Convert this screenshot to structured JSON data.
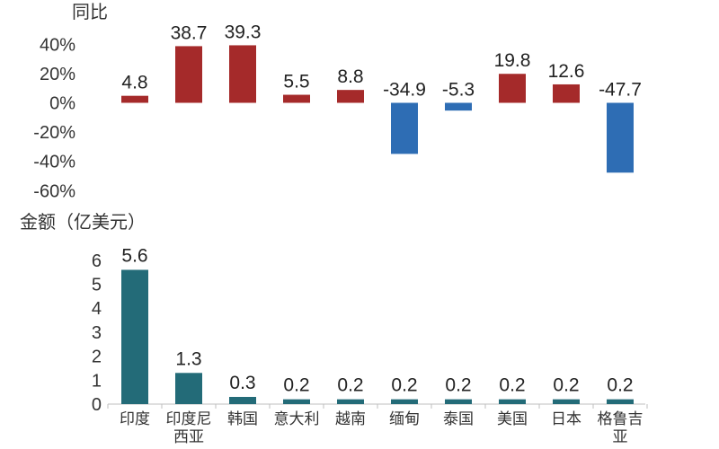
{
  "chart_data": [
    {
      "type": "bar",
      "ylabel": "同比",
      "categories": [
        "印度",
        "印度尼西亚",
        "韩国",
        "意大利",
        "越南",
        "缅甸",
        "泰国",
        "美国",
        "日本",
        "格鲁吉亚"
      ],
      "values": [
        4.8,
        38.7,
        39.3,
        5.5,
        8.8,
        -34.9,
        -5.3,
        19.8,
        12.6,
        -47.7
      ],
      "value_labels": [
        "4.8",
        "38.7",
        "39.3",
        "5.5",
        "8.8",
        "-34.9",
        "-5.3",
        "19.8",
        "12.6",
        "-47.7"
      ],
      "yticks": [
        40,
        20,
        0,
        -20,
        -40,
        -60
      ],
      "ytick_labels": [
        "40%",
        "20%",
        "0%",
        "-20%",
        "-40%",
        "-60%"
      ],
      "ylim": [
        -60,
        40
      ],
      "colors": {
        "positive": "#a52a2a",
        "negative": "#2e6db4"
      }
    },
    {
      "type": "bar",
      "ylabel": "金额（亿美元）",
      "categories": [
        "印度",
        "印度尼西亚",
        "韩国",
        "意大利",
        "越南",
        "缅甸",
        "泰国",
        "美国",
        "日本",
        "格鲁吉亚"
      ],
      "category_labels": [
        [
          "印度"
        ],
        [
          "印度尼",
          "西亚"
        ],
        [
          "韩国"
        ],
        [
          "意大利"
        ],
        [
          "越南"
        ],
        [
          "缅甸"
        ],
        [
          "泰国"
        ],
        [
          "美国"
        ],
        [
          "日本"
        ],
        [
          "格鲁吉",
          "亚"
        ]
      ],
      "values": [
        5.6,
        1.3,
        0.3,
        0.2,
        0.2,
        0.2,
        0.2,
        0.2,
        0.2,
        0.2
      ],
      "value_labels": [
        "5.6",
        "1.3",
        "0.3",
        "0.2",
        "0.2",
        "0.2",
        "0.2",
        "0.2",
        "0.2",
        "0.2"
      ],
      "yticks": [
        6,
        5,
        4,
        3,
        2,
        1,
        0
      ],
      "ytick_labels": [
        "6",
        "5",
        "4",
        "3",
        "2",
        "1",
        "0"
      ],
      "ylim": [
        0,
        6
      ],
      "colors": {
        "bar": "#236b78"
      }
    }
  ]
}
